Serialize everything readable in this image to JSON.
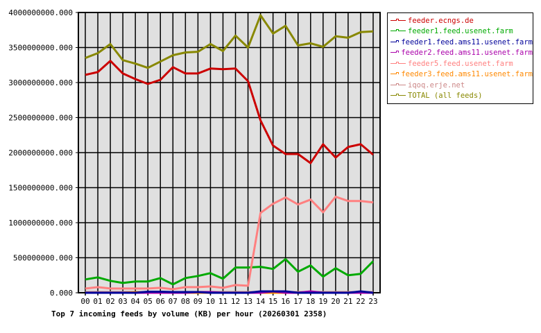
{
  "chart_data": {
    "type": "line",
    "title": "Top 7 incoming feeds by volume (KB) per hour (20260301 2358)",
    "xlabel": "",
    "ylabel": "",
    "ylim": [
      0,
      4000000000
    ],
    "grid": true,
    "legend_position": "right",
    "y_ticks": [
      "0.000",
      "500000000.000",
      "1000000000.000",
      "1500000000.000",
      "2000000000.000",
      "2500000000.000",
      "3000000000.000",
      "3500000000.000",
      "4000000000.000"
    ],
    "categories": [
      "00",
      "01",
      "02",
      "03",
      "04",
      "05",
      "06",
      "07",
      "08",
      "09",
      "10",
      "11",
      "12",
      "13",
      "14",
      "15",
      "16",
      "17",
      "18",
      "19",
      "20",
      "21",
      "22",
      "23"
    ],
    "series": [
      {
        "name": "feeder.ecngs.de",
        "color": "#cc0000",
        "values": [
          3110000000,
          3150000000,
          3310000000,
          3130000000,
          3050000000,
          2980000000,
          3040000000,
          3220000000,
          3130000000,
          3130000000,
          3200000000,
          3190000000,
          3200000000,
          3020000000,
          2460000000,
          2100000000,
          1980000000,
          1980000000,
          1850000000,
          2120000000,
          1930000000,
          2080000000,
          2120000000,
          1970000000
        ]
      },
      {
        "name": "feeder1.feed.usenet.farm",
        "color": "#00aa00",
        "values": [
          190000000,
          220000000,
          170000000,
          140000000,
          160000000,
          160000000,
          210000000,
          120000000,
          210000000,
          240000000,
          280000000,
          200000000,
          360000000,
          360000000,
          370000000,
          340000000,
          480000000,
          300000000,
          390000000,
          230000000,
          350000000,
          250000000,
          270000000,
          450000000
        ]
      },
      {
        "name": "feeder1.feed.ams11.usenet.farm",
        "color": "#000099",
        "values": [
          0,
          0,
          0,
          0,
          0,
          15000000,
          15000000,
          10000000,
          10000000,
          10000000,
          0,
          0,
          0,
          0,
          20000000,
          20000000,
          20000000,
          0,
          0,
          0,
          0,
          0,
          20000000,
          0
        ]
      },
      {
        "name": "feeder2.feed.ams11.usenet.farm",
        "color": "#aa00aa",
        "values": [
          0,
          0,
          0,
          0,
          0,
          0,
          0,
          0,
          0,
          10000000,
          10000000,
          0,
          0,
          0,
          0,
          20000000,
          0,
          0,
          20000000,
          0,
          0,
          0,
          0,
          0
        ]
      },
      {
        "name": "feeder5.feed.usenet.farm",
        "color": "#ff8080",
        "values": [
          60000000,
          80000000,
          60000000,
          60000000,
          60000000,
          60000000,
          70000000,
          50000000,
          80000000,
          80000000,
          90000000,
          70000000,
          110000000,
          100000000,
          1140000000,
          1270000000,
          1360000000,
          1260000000,
          1330000000,
          1150000000,
          1370000000,
          1310000000,
          1310000000,
          1290000000
        ]
      },
      {
        "name": "feeder3.feed.ams11.usenet.farm",
        "color": "#ff8800",
        "values": [
          0,
          0,
          0,
          0,
          10000000,
          0,
          0,
          0,
          0,
          0,
          0,
          0,
          0,
          0,
          0,
          0,
          0,
          0,
          0,
          0,
          0,
          0,
          0,
          0
        ]
      },
      {
        "name": "iqoq.erje.net",
        "color": "#cc8888",
        "values": [
          10000000,
          10000000,
          10000000,
          10000000,
          10000000,
          10000000,
          10000000,
          10000000,
          10000000,
          10000000,
          10000000,
          10000000,
          10000000,
          10000000,
          10000000,
          10000000,
          10000000,
          10000000,
          10000000,
          10000000,
          10000000,
          10000000,
          10000000,
          10000000
        ]
      },
      {
        "name": "TOTAL (all feeds)",
        "color": "#888800",
        "values": [
          3350000000,
          3420000000,
          3550000000,
          3320000000,
          3270000000,
          3210000000,
          3300000000,
          3390000000,
          3430000000,
          3440000000,
          3550000000,
          3450000000,
          3670000000,
          3500000000,
          3960000000,
          3700000000,
          3810000000,
          3530000000,
          3560000000,
          3510000000,
          3660000000,
          3640000000,
          3720000000,
          3730000000
        ]
      }
    ]
  }
}
